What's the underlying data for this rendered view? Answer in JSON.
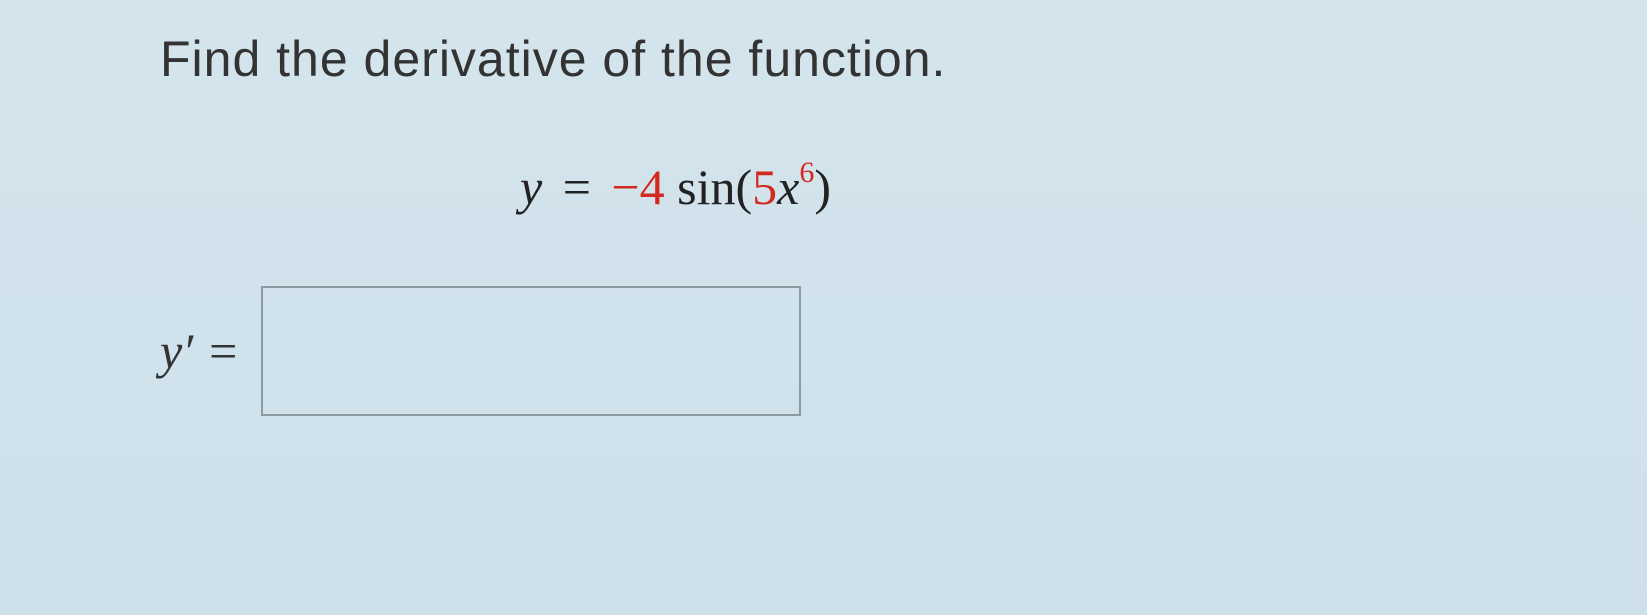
{
  "question": {
    "prompt": "Find the derivative of the function.",
    "equation": {
      "lhs_var": "y",
      "equals": "=",
      "coefficient": "−4",
      "function_name": "sin",
      "open_paren": "(",
      "inner_coefficient": "5",
      "inner_var": "x",
      "exponent": "6",
      "close_paren": ")"
    },
    "answer": {
      "label_var": "y",
      "label_prime": "′",
      "equals": "=",
      "input_value": ""
    }
  },
  "colors": {
    "text": "#333333",
    "red_coefficient": "#d4291f",
    "border": "#8a9a9e",
    "background_top": "#d4e4ed",
    "background_bottom": "#cde0ea"
  }
}
